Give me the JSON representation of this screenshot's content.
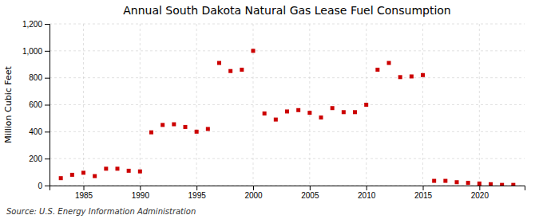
{
  "chart_data": {
    "type": "scatter",
    "title": "Annual South Dakota Natural Gas Lease Fuel Consumption",
    "ylabel": "Million Cubic Feet",
    "annotations": [
      "Source: U.S. Energy Information Administration"
    ],
    "x": [
      1983,
      1984,
      1985,
      1986,
      1987,
      1988,
      1989,
      1990,
      1991,
      1992,
      1993,
      1994,
      1995,
      1996,
      1997,
      1998,
      1999,
      2000,
      2001,
      2002,
      2003,
      2004,
      2005,
      2006,
      2007,
      2008,
      2009,
      2010,
      2011,
      2012,
      2013,
      2014,
      2015,
      2016,
      2017,
      2018,
      2019,
      2020,
      2021,
      2022,
      2023
    ],
    "values": [
      55,
      80,
      95,
      70,
      125,
      125,
      110,
      105,
      395,
      450,
      455,
      435,
      400,
      420,
      910,
      850,
      860,
      1000,
      535,
      490,
      550,
      560,
      540,
      505,
      575,
      545,
      545,
      600,
      860,
      910,
      805,
      810,
      820,
      35,
      35,
      25,
      20,
      15,
      10,
      5,
      5
    ],
    "color": "#cc0000",
    "marker": "square",
    "xlim": [
      1982,
      2024
    ],
    "ylim": [
      0,
      1200
    ],
    "xticks": [
      1985,
      1990,
      1995,
      2000,
      2005,
      2010,
      2015,
      2020
    ],
    "yticks": [
      0,
      200,
      400,
      600,
      800,
      {
        "value": 1000,
        "label": "1,000"
      },
      {
        "value": 1200,
        "label": "1,200"
      }
    ],
    "grid": true
  }
}
